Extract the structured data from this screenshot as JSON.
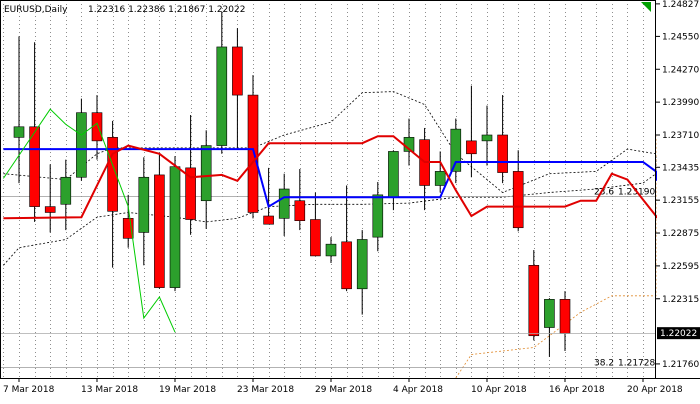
{
  "header": {
    "symbol_text": "EURUSD,Daily",
    "ohlc_text": "1.22316 1.22386 1.21867 1.22022"
  },
  "colors": {
    "bull": "#2ca02c",
    "bear": "#ff0000",
    "kijun": "#0000ff",
    "tenkan": "#e00000",
    "chikou": "#00cc00",
    "cloud": "#000000",
    "fib": "#999999",
    "dotted_orange": "#e08a2c",
    "price_tag": "#000000"
  },
  "chart_data": {
    "type": "candlestick",
    "title": "EURUSD,Daily",
    "ylim": [
      1.2164,
      1.2486
    ],
    "y_ticks": [
      "1.24827",
      "1.24550",
      "1.24270",
      "1.23990",
      "1.23710",
      "1.23435",
      "1.23155",
      "1.22875",
      "1.22595",
      "1.22315",
      "1.22022",
      "1.21760"
    ],
    "x_tick_labels": [
      "7 Mar 2018",
      "13 Mar 2018",
      "19 Mar 2018",
      "23 Mar 2018",
      "29 Mar 2018",
      "4 Apr 2018",
      "10 Apr 2018",
      "16 Apr 2018",
      "20 Apr 2018"
    ],
    "x_tick_index": [
      0,
      5,
      10,
      15,
      20,
      25,
      30,
      35,
      40
    ],
    "current_price": "1.22022",
    "candles": [
      {
        "o": 1.2369,
        "h": 1.2455,
        "l": 1.233,
        "c": 1.2378
      },
      {
        "o": 1.2378,
        "h": 1.245,
        "l": 1.2297,
        "c": 1.231
      },
      {
        "o": 1.231,
        "h": 1.2346,
        "l": 1.2288,
        "c": 1.2305
      },
      {
        "o": 1.2312,
        "h": 1.235,
        "l": 1.229,
        "c": 1.2335
      },
      {
        "o": 1.2335,
        "h": 1.2402,
        "l": 1.2332,
        "c": 1.239
      },
      {
        "o": 1.239,
        "h": 1.2405,
        "l": 1.235,
        "c": 1.2366
      },
      {
        "o": 1.2369,
        "h": 1.2383,
        "l": 1.2258,
        "c": 1.2306
      },
      {
        "o": 1.23,
        "h": 1.232,
        "l": 1.2275,
        "c": 1.2283
      },
      {
        "o": 1.2288,
        "h": 1.2352,
        "l": 1.226,
        "c": 1.2335
      },
      {
        "o": 1.2337,
        "h": 1.2356,
        "l": 1.224,
        "c": 1.2241
      },
      {
        "o": 1.2241,
        "h": 1.2353,
        "l": 1.2238,
        "c": 1.2344
      },
      {
        "o": 1.2343,
        "h": 1.2388,
        "l": 1.2286,
        "c": 1.2299
      },
      {
        "o": 1.2315,
        "h": 1.2375,
        "l": 1.2291,
        "c": 1.2362
      },
      {
        "o": 1.2362,
        "h": 1.2476,
        "l": 1.2355,
        "c": 1.2446
      },
      {
        "o": 1.2446,
        "h": 1.2462,
        "l": 1.236,
        "c": 1.2405
      },
      {
        "o": 1.2405,
        "h": 1.2422,
        "l": 1.23,
        "c": 1.2305
      },
      {
        "o": 1.2302,
        "h": 1.2343,
        "l": 1.2295,
        "c": 1.2295
      },
      {
        "o": 1.23,
        "h": 1.2338,
        "l": 1.2285,
        "c": 1.2325
      },
      {
        "o": 1.2315,
        "h": 1.2342,
        "l": 1.229,
        "c": 1.2298
      },
      {
        "o": 1.2299,
        "h": 1.2322,
        "l": 1.2268,
        "c": 1.2268
      },
      {
        "o": 1.2268,
        "h": 1.2284,
        "l": 1.2262,
        "c": 1.2278
      },
      {
        "o": 1.228,
        "h": 1.2328,
        "l": 1.2238,
        "c": 1.224
      },
      {
        "o": 1.224,
        "h": 1.229,
        "l": 1.2218,
        "c": 1.2282
      },
      {
        "o": 1.2284,
        "h": 1.2331,
        "l": 1.2272,
        "c": 1.232
      },
      {
        "o": 1.2318,
        "h": 1.2358,
        "l": 1.2307,
        "c": 1.2357
      },
      {
        "o": 1.2357,
        "h": 1.2385,
        "l": 1.2345,
        "c": 1.2369
      },
      {
        "o": 1.2367,
        "h": 1.2377,
        "l": 1.2307,
        "c": 1.2328
      },
      {
        "o": 1.2328,
        "h": 1.2357,
        "l": 1.2322,
        "c": 1.234
      },
      {
        "o": 1.234,
        "h": 1.2385,
        "l": 1.233,
        "c": 1.2376
      },
      {
        "o": 1.2366,
        "h": 1.2413,
        "l": 1.2335,
        "c": 1.2355
      },
      {
        "o": 1.2366,
        "h": 1.2396,
        "l": 1.2345,
        "c": 1.2371
      },
      {
        "o": 1.2371,
        "h": 1.2405,
        "l": 1.233,
        "c": 1.2339
      },
      {
        "o": 1.234,
        "h": 1.2358,
        "l": 1.2289,
        "c": 1.2292
      },
      {
        "o": 1.226,
        "h": 1.2273,
        "l": 1.2196,
        "c": 1.22
      },
      {
        "o": 1.2207,
        "h": 1.2232,
        "l": 1.2182,
        "c": 1.2231
      },
      {
        "o": 1.2231,
        "h": 1.2238,
        "l": 1.2187,
        "c": 1.2202
      }
    ],
    "kijun": [
      {
        "i": -1,
        "v": 1.2359
      },
      {
        "i": 15,
        "v": 1.2359
      },
      {
        "i": 16,
        "v": 1.231
      },
      {
        "i": 17,
        "v": 1.2318
      },
      {
        "i": 27,
        "v": 1.2318
      },
      {
        "i": 28,
        "v": 1.2348
      },
      {
        "i": 40,
        "v": 1.2348
      },
      {
        "i": 41,
        "v": 1.234
      },
      {
        "i": 42,
        "v": 1.2332
      },
      {
        "i": 43,
        "v": 1.2332
      }
    ],
    "tenkan": [
      {
        "i": -1,
        "v": 1.23
      },
      {
        "i": 4,
        "v": 1.2301
      },
      {
        "i": 6,
        "v": 1.2355
      },
      {
        "i": 7,
        "v": 1.2362
      },
      {
        "i": 9,
        "v": 1.2355
      },
      {
        "i": 11,
        "v": 1.2335
      },
      {
        "i": 13,
        "v": 1.2337
      },
      {
        "i": 14,
        "v": 1.2332
      },
      {
        "i": 15,
        "v": 1.2348
      },
      {
        "i": 16,
        "v": 1.2364
      },
      {
        "i": 22,
        "v": 1.2364
      },
      {
        "i": 23,
        "v": 1.237
      },
      {
        "i": 24,
        "v": 1.237
      },
      {
        "i": 26,
        "v": 1.2348
      },
      {
        "i": 27,
        "v": 1.2348
      },
      {
        "i": 28,
        "v": 1.2324
      },
      {
        "i": 29,
        "v": 1.2302
      },
      {
        "i": 30,
        "v": 1.231
      },
      {
        "i": 35,
        "v": 1.231
      },
      {
        "i": 36,
        "v": 1.2315
      },
      {
        "i": 37,
        "v": 1.2315
      },
      {
        "i": 38,
        "v": 1.2338
      },
      {
        "i": 39,
        "v": 1.2333
      },
      {
        "i": 40,
        "v": 1.2316
      },
      {
        "i": 41,
        "v": 1.2302
      },
      {
        "i": 42,
        "v": 1.23
      },
      {
        "i": 43,
        "v": 1.23
      }
    ],
    "chikou": [
      {
        "i": -1,
        "v": 1.2334
      },
      {
        "i": 2,
        "v": 1.2393
      },
      {
        "i": 3,
        "v": 1.238
      },
      {
        "i": 4,
        "v": 1.2371
      },
      {
        "i": 5,
        "v": 1.2381
      },
      {
        "i": 7,
        "v": 1.231
      },
      {
        "i": 8,
        "v": 1.2215
      },
      {
        "i": 9,
        "v": 1.2233
      },
      {
        "i": 10,
        "v": 1.2203
      }
    ],
    "cloud_upper": [
      {
        "i": -1,
        "v": 1.2338
      },
      {
        "i": 3,
        "v": 1.2333
      },
      {
        "i": 5,
        "v": 1.2355
      },
      {
        "i": 6,
        "v": 1.236
      },
      {
        "i": 15,
        "v": 1.236
      },
      {
        "i": 17,
        "v": 1.2371
      },
      {
        "i": 20,
        "v": 1.2382
      },
      {
        "i": 22,
        "v": 1.2407
      },
      {
        "i": 24,
        "v": 1.2408
      },
      {
        "i": 26,
        "v": 1.2397
      },
      {
        "i": 28,
        "v": 1.2355
      },
      {
        "i": 31,
        "v": 1.2322
      },
      {
        "i": 34,
        "v": 1.2338
      },
      {
        "i": 37,
        "v": 1.234
      },
      {
        "i": 39,
        "v": 1.2359
      },
      {
        "i": 43,
        "v": 1.2355
      },
      {
        "i": 46,
        "v": 1.2344
      },
      {
        "i": 49,
        "v": 1.2332
      }
    ],
    "cloud_lower": [
      {
        "i": -1,
        "v": 1.226
      },
      {
        "i": 0,
        "v": 1.2275
      },
      {
        "i": 3,
        "v": 1.2282
      },
      {
        "i": 5,
        "v": 1.2301
      },
      {
        "i": 7,
        "v": 1.2305
      },
      {
        "i": 10,
        "v": 1.2301
      },
      {
        "i": 12,
        "v": 1.2297
      },
      {
        "i": 14,
        "v": 1.23
      },
      {
        "i": 16,
        "v": 1.231
      },
      {
        "i": 19,
        "v": 1.2312
      },
      {
        "i": 22,
        "v": 1.2312
      },
      {
        "i": 25,
        "v": 1.2313
      },
      {
        "i": 28,
        "v": 1.2318
      },
      {
        "i": 31,
        "v": 1.2318
      },
      {
        "i": 34,
        "v": 1.2322
      },
      {
        "i": 37,
        "v": 1.2325
      },
      {
        "i": 40,
        "v": 1.233
      },
      {
        "i": 43,
        "v": 1.2338
      }
    ],
    "orange_dotted": [
      {
        "i": 28,
        "v": 1.2164
      },
      {
        "i": 29,
        "v": 1.2184
      },
      {
        "i": 33,
        "v": 1.219
      },
      {
        "i": 36,
        "v": 1.222
      },
      {
        "i": 38,
        "v": 1.2234
      },
      {
        "i": 41,
        "v": 1.2234
      },
      {
        "i": 43,
        "v": 1.2236
      },
      {
        "i": 46,
        "v": 1.2244
      },
      {
        "i": 47,
        "v": 1.2247
      },
      {
        "i": 48,
        "v": 1.231
      },
      {
        "i": 49,
        "v": 1.2332
      },
      {
        "i": 50,
        "v": 1.237
      }
    ],
    "fib_levels": [
      {
        "label": "23.6",
        "price_text": "1.23190",
        "v": 1.2319
      },
      {
        "label": "38.2",
        "price_text": "1.21728",
        "v": 1.2173
      }
    ]
  }
}
